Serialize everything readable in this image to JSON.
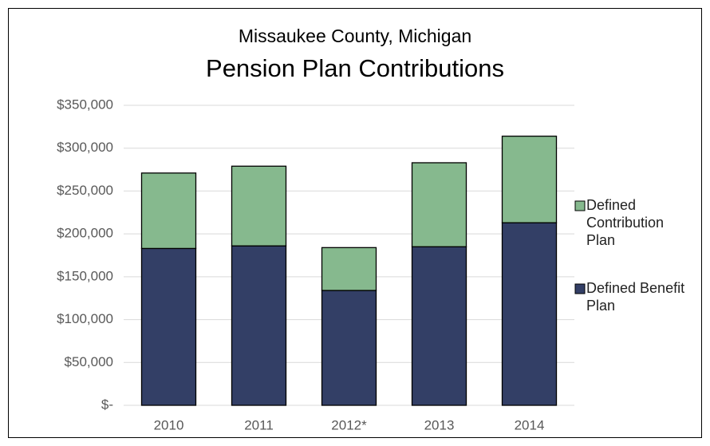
{
  "chart_data": {
    "type": "stacked_bar",
    "title": "Missaukee County, Michigan",
    "subtitle": "Pension Plan Contributions",
    "categories": [
      "2010",
      "2011",
      "2012*",
      "2013",
      "2014"
    ],
    "series": [
      {
        "name": "Defined Benefit Plan",
        "color": "#333f66",
        "values": [
          183000,
          186000,
          134000,
          185000,
          213000
        ]
      },
      {
        "name": "Defined Contribution Plan",
        "color": "#86b98e",
        "values": [
          88000,
          93000,
          50000,
          98000,
          101000
        ]
      }
    ],
    "ylim": [
      0,
      350000
    ],
    "yticks": [
      {
        "value": 0,
        "label": "$-"
      },
      {
        "value": 50000,
        "label": "$50,000"
      },
      {
        "value": 100000,
        "label": "$100,000"
      },
      {
        "value": 150000,
        "label": "$150,000"
      },
      {
        "value": 200000,
        "label": "$200,000"
      },
      {
        "value": 250000,
        "label": "$250,000"
      },
      {
        "value": 300000,
        "label": "$300,000"
      },
      {
        "value": 350000,
        "label": "$350,000"
      }
    ],
    "grid": true,
    "legend": "right"
  }
}
